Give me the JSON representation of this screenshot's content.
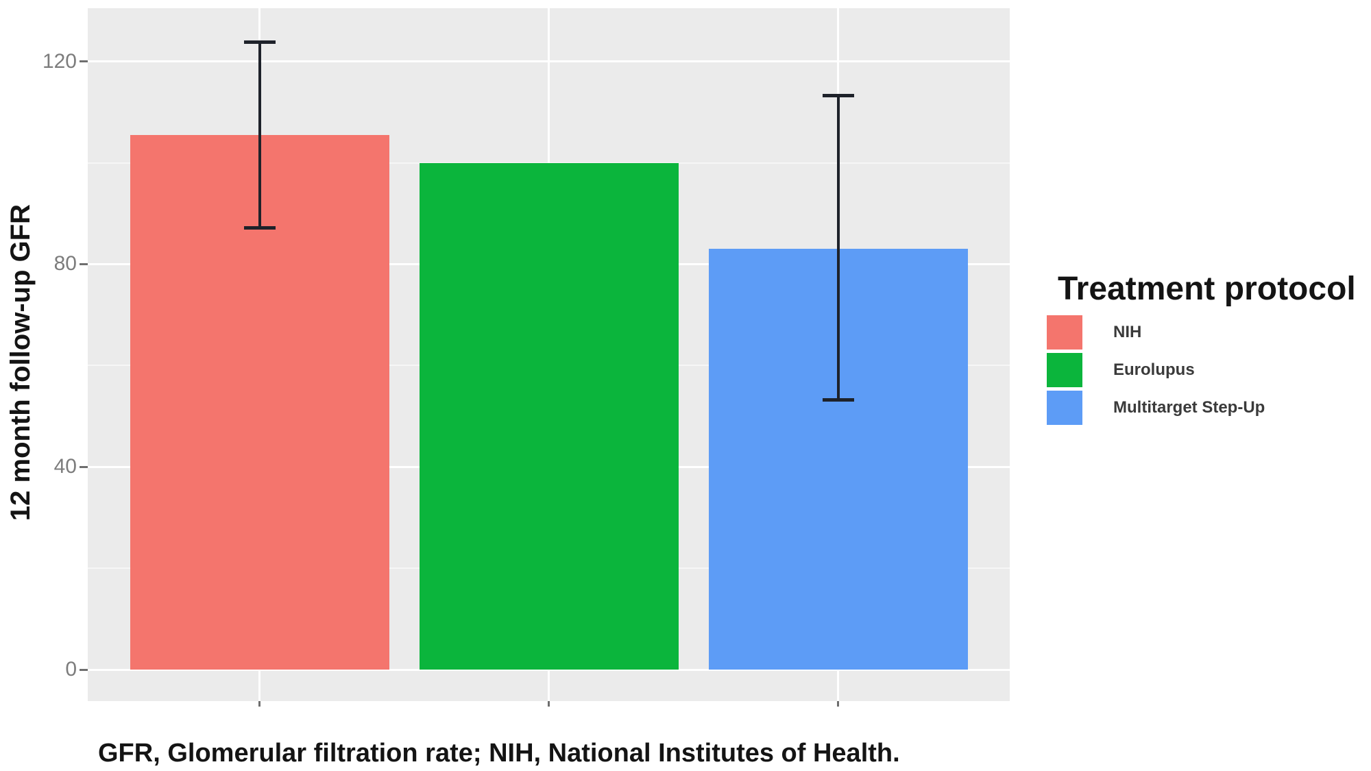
{
  "figure": {
    "y_axis_title": "12 month follow-up GFR",
    "legend_title": "Treatment protocol",
    "caption": "GFR, Glomerular filtration rate; NIH, National Institutes of Health."
  },
  "chart_data": {
    "type": "bar",
    "categories": [
      "NIH",
      "Eurolupus",
      "Multitarget Step-Up"
    ],
    "values": [
      105.5,
      100,
      83
    ],
    "colors": [
      "#F4756D",
      "#0BB53C",
      "#5D9CF6"
    ],
    "error_bars": [
      {
        "category": "NIH",
        "ymin": 87,
        "ymax": 124
      },
      {
        "category": "Multitarget Step-Up",
        "ymin": 53,
        "ymax": 113.5
      }
    ],
    "title": "",
    "xlabel": "",
    "ylabel": "12 month follow-up GFR",
    "x_tick_labels": [
      "",
      "",
      ""
    ],
    "yticks": [
      0,
      40,
      80,
      120
    ],
    "yticks_minor": [
      20,
      60,
      100
    ],
    "ylim": [
      -6.2,
      130.7
    ],
    "grid": true,
    "legend_title": "Treatment protocol",
    "legend_position": "right",
    "panel_background": "#EBEBEB",
    "errorbar_color": "#1E222A"
  }
}
